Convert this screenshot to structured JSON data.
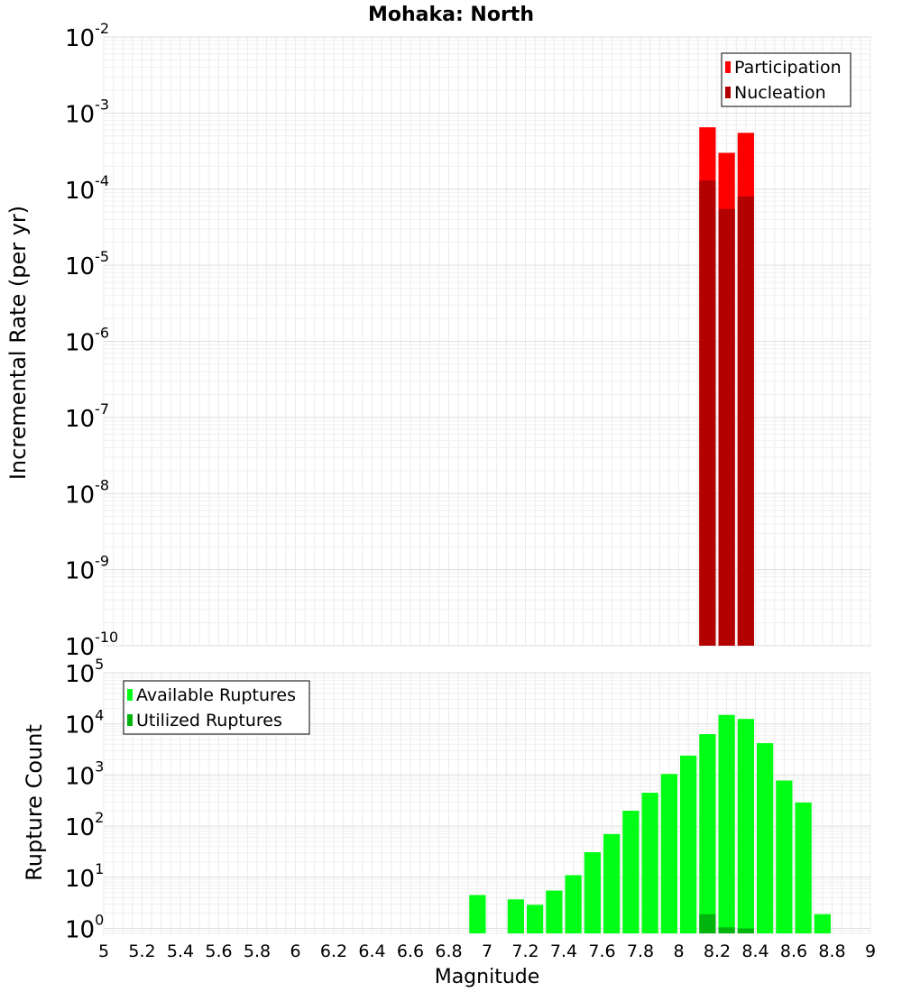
{
  "title": "Mohaka: North",
  "xlabel": "Magnitude",
  "chart_data": [
    {
      "type": "bar",
      "panel": "top",
      "title": "Mohaka: North",
      "ylabel": "Incremental Rate (per yr)",
      "yscale": "log",
      "ylim": [
        1e-10,
        0.01
      ],
      "xlim": [
        5,
        9
      ],
      "grid": true,
      "legend_position": "top-right",
      "bin_width": 0.1,
      "series": [
        {
          "name": "Participation",
          "color": "#ff0000",
          "x": [
            8.15,
            8.25,
            8.35
          ],
          "values": [
            0.00065,
            0.0003,
            0.00055
          ]
        },
        {
          "name": "Nucleation",
          "color": "#b30000",
          "x": [
            8.15,
            8.25,
            8.35
          ],
          "values": [
            0.00013,
            5.5e-05,
            8e-05
          ]
        }
      ],
      "yticks": [
        {
          "base": "10",
          "exp": "-10"
        },
        {
          "base": "10",
          "exp": "-9"
        },
        {
          "base": "10",
          "exp": "-8"
        },
        {
          "base": "10",
          "exp": "-7"
        },
        {
          "base": "10",
          "exp": "-6"
        },
        {
          "base": "10",
          "exp": "-5"
        },
        {
          "base": "10",
          "exp": "-4"
        },
        {
          "base": "10",
          "exp": "-3"
        },
        {
          "base": "10",
          "exp": "-2"
        }
      ]
    },
    {
      "type": "bar",
      "panel": "bottom",
      "ylabel": "Rupture Count",
      "yscale": "log",
      "ylim": [
        0.8,
        100000
      ],
      "xlim": [
        5,
        9
      ],
      "grid": true,
      "legend_position": "top-left",
      "bin_width": 0.1,
      "series": [
        {
          "name": "Available Ruptures",
          "color": "#00ff14",
          "x": [
            6.95,
            7.15,
            7.25,
            7.35,
            7.45,
            7.55,
            7.65,
            7.75,
            7.85,
            7.95,
            8.05,
            8.15,
            8.25,
            8.35,
            8.45,
            8.55,
            8.65,
            8.75
          ],
          "values": [
            4.5,
            3.7,
            2.9,
            5.5,
            11,
            31,
            70,
            200,
            450,
            1050,
            2400,
            6300,
            15000,
            12500,
            4200,
            780,
            290,
            1.9
          ]
        },
        {
          "name": "Utilized Ruptures",
          "color": "#00b40e",
          "x": [
            8.15,
            8.25,
            8.35
          ],
          "values": [
            1.9,
            1.05,
            1.0
          ]
        }
      ],
      "yticks": [
        {
          "base": "10",
          "exp": "0"
        },
        {
          "base": "10",
          "exp": "1"
        },
        {
          "base": "10",
          "exp": "2"
        },
        {
          "base": "10",
          "exp": "3"
        },
        {
          "base": "10",
          "exp": "4"
        },
        {
          "base": "10",
          "exp": "5"
        }
      ]
    }
  ],
  "xticks": [
    "5",
    "5.2",
    "5.4",
    "5.6",
    "5.8",
    "6",
    "6.2",
    "6.4",
    "6.6",
    "6.8",
    "7",
    "7.2",
    "7.4",
    "7.6",
    "7.8",
    "8",
    "8.2",
    "8.4",
    "8.6",
    "8.8",
    "9"
  ]
}
